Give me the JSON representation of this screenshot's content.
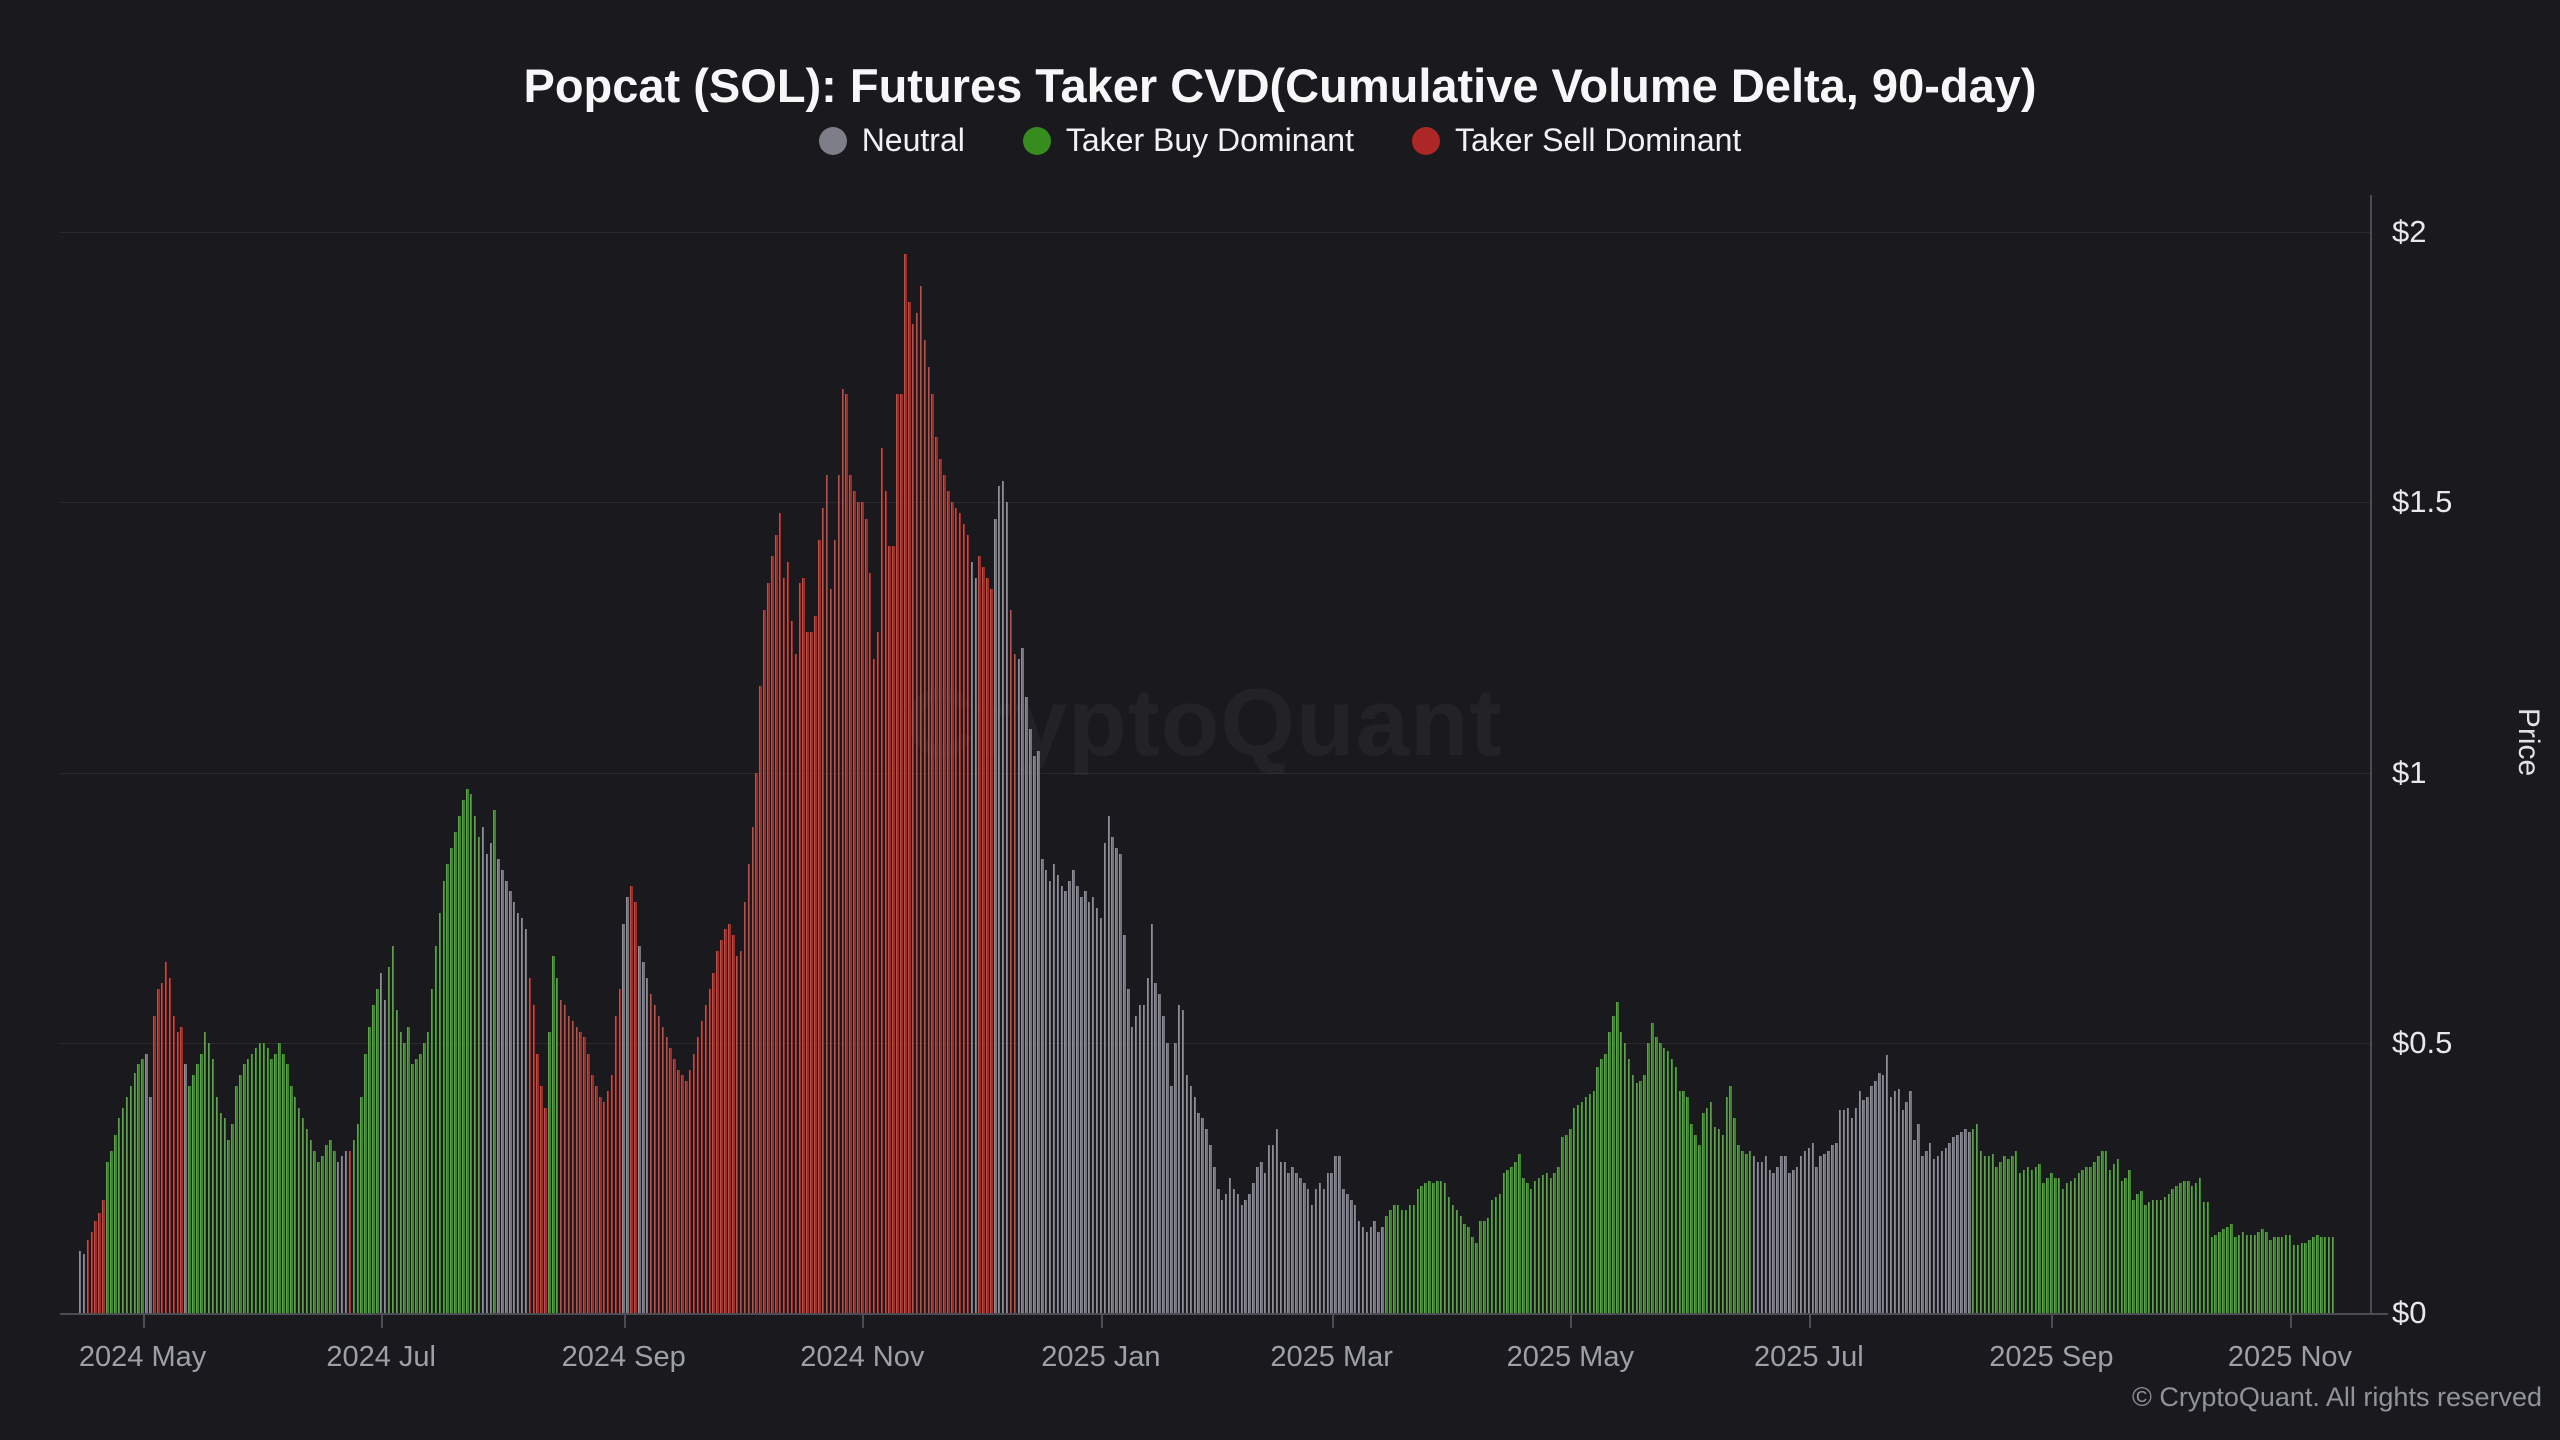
{
  "header": {
    "title": "Popcat (SOL): Futures Taker CVD(Cumulative Volume Delta, 90-day)",
    "legend": [
      {
        "id": "neutral",
        "label": "Neutral",
        "color": "#7e7e88"
      },
      {
        "id": "buy",
        "label": "Taker Buy Dominant",
        "color": "#378c1e"
      },
      {
        "id": "sell",
        "label": "Taker Sell Dominant",
        "color": "#ad2726"
      }
    ]
  },
  "watermark": "CryptoQuant",
  "footer": {
    "copyright": "© CryptoQuant. All rights reserved"
  },
  "axes": {
    "y": {
      "title": "Price",
      "ticks": [
        {
          "label": "$0",
          "value": 0
        },
        {
          "label": "$0.5",
          "value": 0.5
        },
        {
          "label": "$1",
          "value": 1
        },
        {
          "label": "$1.5",
          "value": 1.5
        },
        {
          "label": "$2",
          "value": 2
        }
      ]
    },
    "x": {
      "ticks": [
        {
          "label": "2024 May",
          "date": "2024-05-01"
        },
        {
          "label": "2024 Jul",
          "date": "2024-07-01"
        },
        {
          "label": "2024 Sep",
          "date": "2024-09-01"
        },
        {
          "label": "2024 Nov",
          "date": "2024-11-01"
        },
        {
          "label": "2025 Jan",
          "date": "2025-01-01"
        },
        {
          "label": "2025 Mar",
          "date": "2025-03-01"
        },
        {
          "label": "2025 May",
          "date": "2025-05-01"
        },
        {
          "label": "2025 Jul",
          "date": "2025-07-01"
        },
        {
          "label": "2025 Sep",
          "date": "2025-09-01"
        },
        {
          "label": "2025 Nov",
          "date": "2025-11-01"
        }
      ]
    }
  },
  "chart_data": {
    "type": "bar",
    "title": "Popcat (SOL): Futures Taker CVD(Cumulative Volume Delta, 90-day)",
    "xlabel": "",
    "ylabel": "Price",
    "ylim": [
      0,
      2.07
    ],
    "x_range": [
      "2024-04-15",
      "2025-11-12"
    ],
    "frequency": "daily",
    "grid": "horizontal",
    "legend_position": "top-center",
    "bar_colors": {
      "neutral": "#74747e",
      "buy": "#3b8727",
      "sell": "#a02b25"
    },
    "series": [
      {
        "start": "2024-04-15",
        "regime": "neutral",
        "values": [
          0.115,
          0.11
        ]
      },
      {
        "start": "2024-04-17",
        "regime": "sell",
        "values": [
          0.135,
          0.15,
          0.17,
          0.185,
          0.21
        ]
      },
      {
        "start": "2024-04-22",
        "regime": "buy",
        "values": [
          0.28,
          0.3,
          0.33,
          0.36,
          0.38,
          0.4,
          0.42,
          0.445,
          0.46,
          0.47
        ]
      },
      {
        "start": "2024-05-02",
        "regime": "neutral",
        "values": [
          0.48,
          0.4
        ]
      },
      {
        "start": "2024-05-04",
        "regime": "sell",
        "values": [
          0.55,
          0.6,
          0.61,
          0.65,
          0.62,
          0.55,
          0.52,
          0.53
        ]
      },
      {
        "start": "2024-05-12",
        "regime": "neutral",
        "values": [
          0.46
        ]
      },
      {
        "start": "2024-05-13",
        "regime": "buy",
        "values": [
          0.42,
          0.44,
          0.46,
          0.48,
          0.52,
          0.5,
          0.47,
          0.4,
          0.37,
          0.36,
          0.32,
          0.35,
          0.42,
          0.44,
          0.46,
          0.47,
          0.48,
          0.49,
          0.5,
          0.5,
          0.49,
          0.47,
          0.48,
          0.5,
          0.48,
          0.46,
          0.42,
          0.4,
          0.38,
          0.36,
          0.34,
          0.32,
          0.3,
          0.28,
          0.29,
          0.31,
          0.32,
          0.3
        ]
      },
      {
        "start": "2024-06-20",
        "regime": "neutral",
        "values": [
          0.28,
          0.29,
          0.3
        ]
      },
      {
        "start": "2024-06-23",
        "regime": "sell",
        "values": [
          0.3
        ]
      },
      {
        "start": "2024-06-24",
        "regime": "buy",
        "values": [
          0.32,
          0.35,
          0.4,
          0.48,
          0.53,
          0.57,
          0.6
        ]
      },
      {
        "start": "2024-07-01",
        "regime": "neutral",
        "values": [
          0.63,
          0.58
        ]
      },
      {
        "start": "2024-07-03",
        "regime": "buy",
        "values": [
          0.64,
          0.68,
          0.56,
          0.52,
          0.5,
          0.53,
          0.46,
          0.47,
          0.48,
          0.5,
          0.52,
          0.6,
          0.68,
          0.74,
          0.8,
          0.83,
          0.86,
          0.89,
          0.92,
          0.95,
          0.97,
          0.96,
          0.92,
          0.88
        ]
      },
      {
        "start": "2024-07-27",
        "regime": "neutral",
        "values": [
          0.9,
          0.85,
          0.87
        ]
      },
      {
        "start": "2024-07-30",
        "regime": "buy",
        "values": [
          0.93
        ]
      },
      {
        "start": "2024-07-31",
        "regime": "neutral",
        "values": [
          0.84,
          0.82,
          0.8,
          0.78,
          0.76,
          0.74,
          0.73,
          0.71
        ]
      },
      {
        "start": "2024-08-08",
        "regime": "sell",
        "values": [
          0.62,
          0.57,
          0.48,
          0.42,
          0.38
        ]
      },
      {
        "start": "2024-08-13",
        "regime": "buy",
        "values": [
          0.52,
          0.66,
          0.62
        ]
      },
      {
        "start": "2024-08-16",
        "regime": "sell",
        "values": [
          0.58,
          0.57,
          0.55,
          0.54,
          0.53,
          0.52,
          0.51,
          0.48,
          0.44,
          0.42,
          0.4,
          0.39,
          0.41,
          0.44,
          0.55,
          0.6
        ]
      },
      {
        "start": "2024-09-01",
        "regime": "neutral",
        "values": [
          0.72,
          0.77
        ]
      },
      {
        "start": "2024-09-03",
        "regime": "sell",
        "values": [
          0.79,
          0.76
        ]
      },
      {
        "start": "2024-09-05",
        "regime": "neutral",
        "values": [
          0.68,
          0.65,
          0.62
        ]
      },
      {
        "start": "2024-09-08",
        "regime": "sell",
        "values": [
          0.59,
          0.57,
          0.55,
          0.53,
          0.51,
          0.49,
          0.47,
          0.45,
          0.44,
          0.43,
          0.45,
          0.48,
          0.51,
          0.54,
          0.57,
          0.6,
          0.63,
          0.67,
          0.69,
          0.71,
          0.72,
          0.7,
          0.66,
          0.67,
          0.76,
          0.83,
          0.9,
          1.0,
          1.16,
          1.3,
          1.35,
          1.4,
          1.44,
          1.48,
          1.36,
          1.39,
          1.28,
          1.22,
          1.35,
          1.36,
          1.26,
          1.26,
          1.29,
          1.43,
          1.49,
          1.55,
          1.34,
          1.43,
          1.55,
          1.71,
          1.7,
          1.55,
          1.52,
          1.5,
          1.5,
          1.47,
          1.37,
          1.21,
          1.26,
          1.6,
          1.52,
          1.42,
          1.42,
          1.7,
          1.7,
          1.96,
          1.87,
          1.83,
          1.85,
          1.9,
          1.8,
          1.75,
          1.7,
          1.62,
          1.58,
          1.55,
          1.52,
          1.5,
          1.49,
          1.48,
          1.46,
          1.44
        ]
      },
      {
        "start": "2024-11-29",
        "regime": "neutral",
        "values": [
          1.39,
          1.36
        ]
      },
      {
        "start": "2024-12-01",
        "regime": "sell",
        "values": [
          1.4,
          1.38,
          1.36,
          1.34
        ]
      },
      {
        "start": "2024-12-05",
        "regime": "neutral",
        "values": [
          1.47,
          1.53,
          1.54,
          1.5
        ]
      },
      {
        "start": "2024-12-09",
        "regime": "sell",
        "values": [
          1.3,
          1.22
        ]
      },
      {
        "start": "2024-12-11",
        "regime": "neutral",
        "values": [
          1.21,
          1.23,
          1.14,
          1.08,
          1.03,
          1.04,
          0.84,
          0.82,
          0.8,
          0.83,
          0.81,
          0.79,
          0.78,
          0.8,
          0.82,
          0.79,
          0.77,
          0.78,
          0.76,
          0.77,
          0.75,
          0.73,
          0.87,
          0.92,
          0.88,
          0.86,
          0.85,
          0.7,
          0.6,
          0.53,
          0.55,
          0.57,
          0.57,
          0.62,
          0.72,
          0.61,
          0.59,
          0.55,
          0.5,
          0.42,
          0.5,
          0.57,
          0.56,
          0.44,
          0.42,
          0.4,
          0.37,
          0.36,
          0.34,
          0.31,
          0.27,
          0.23,
          0.21,
          0.22,
          0.25,
          0.23,
          0.22,
          0.2,
          0.21,
          0.22,
          0.24,
          0.27,
          0.28,
          0.26,
          0.31,
          0.31,
          0.34,
          0.28,
          0.28,
          0.26,
          0.27,
          0.26,
          0.25,
          0.24,
          0.23,
          0.2,
          0.23,
          0.24,
          0.23,
          0.26,
          0.26,
          0.29,
          0.29,
          0.23,
          0.22,
          0.21,
          0.2,
          0.17,
          0.16,
          0.15,
          0.16,
          0.17,
          0.15,
          0.16
        ]
      },
      {
        "start": "2025-03-15",
        "regime": "buy",
        "values": [
          0.18,
          0.19,
          0.2,
          0.2,
          0.19,
          0.19,
          0.2,
          0.2,
          0.23,
          0.235,
          0.24,
          0.245,
          0.24,
          0.245,
          0.245,
          0.24,
          0.215,
          0.2,
          0.19,
          0.18,
          0.165,
          0.16,
          0.14,
          0.13,
          0.17,
          0.17,
          0.175,
          0.21,
          0.215,
          0.22,
          0.26,
          0.265,
          0.27,
          0.28,
          0.295,
          0.25,
          0.24,
          0.23,
          0.245,
          0.25,
          0.255,
          0.26,
          0.25,
          0.26,
          0.27,
          0.325,
          0.33,
          0.34,
          0.38,
          0.385,
          0.39,
          0.4,
          0.405,
          0.41,
          0.455,
          0.47,
          0.48,
          0.52,
          0.55,
          0.575,
          0.52,
          0.5,
          0.47,
          0.44,
          0.425,
          0.43,
          0.44,
          0.5,
          0.536,
          0.51,
          0.5,
          0.49,
          0.485,
          0.47,
          0.455,
          0.41,
          0.41,
          0.4,
          0.35,
          0.33,
          0.31,
          0.37,
          0.38,
          0.39,
          0.345,
          0.34,
          0.33,
          0.4,
          0.42,
          0.36,
          0.31,
          0.3,
          0.295,
          0.3
        ]
      },
      {
        "start": "2025-06-17",
        "regime": "neutral",
        "values": [
          0.29,
          0.28,
          0.28,
          0.29,
          0.265,
          0.26,
          0.27,
          0.29,
          0.29,
          0.26,
          0.265,
          0.27,
          0.29,
          0.3,
          0.305,
          0.315,
          0.27,
          0.29,
          0.295,
          0.3,
          0.31,
          0.315,
          0.375,
          0.375,
          0.38,
          0.36,
          0.38,
          0.41,
          0.395,
          0.4,
          0.42,
          0.43,
          0.445,
          0.44,
          0.478,
          0.4,
          0.41,
          0.415,
          0.375,
          0.39,
          0.41,
          0.32,
          0.35,
          0.29,
          0.3,
          0.315,
          0.285,
          0.29,
          0.3,
          0.305,
          0.315,
          0.325,
          0.33,
          0.335,
          0.34,
          0.335
        ]
      },
      {
        "start": "2025-08-12",
        "regime": "buy",
        "values": [
          0.34,
          0.35,
          0.3,
          0.29,
          0.29,
          0.295,
          0.27,
          0.28,
          0.29,
          0.285,
          0.29,
          0.3,
          0.26,
          0.265,
          0.27,
          0.265,
          0.27,
          0.275,
          0.24,
          0.25,
          0.26,
          0.25,
          0.25,
          0.23,
          0.24,
          0.245,
          0.25,
          0.26,
          0.265,
          0.27,
          0.27,
          0.28,
          0.29,
          0.3,
          0.3,
          0.265,
          0.275,
          0.285,
          0.245,
          0.25,
          0.265,
          0.21,
          0.22,
          0.225,
          0.2,
          0.205,
          0.21,
          0.21,
          0.21,
          0.215,
          0.22,
          0.23,
          0.235,
          0.24,
          0.245,
          0.245,
          0.235,
          0.24,
          0.25,
          0.205,
          0.205,
          0.14,
          0.145,
          0.15,
          0.155,
          0.16,
          0.165,
          0.14,
          0.145,
          0.15,
          0.145,
          0.145,
          0.145,
          0.15,
          0.155,
          0.15,
          0.135,
          0.14,
          0.14,
          0.14,
          0.145,
          0.145,
          0.125,
          0.125,
          0.13,
          0.13,
          0.135,
          0.14,
          0.145,
          0.14,
          0.14,
          0.14,
          0.14
        ]
      }
    ]
  }
}
